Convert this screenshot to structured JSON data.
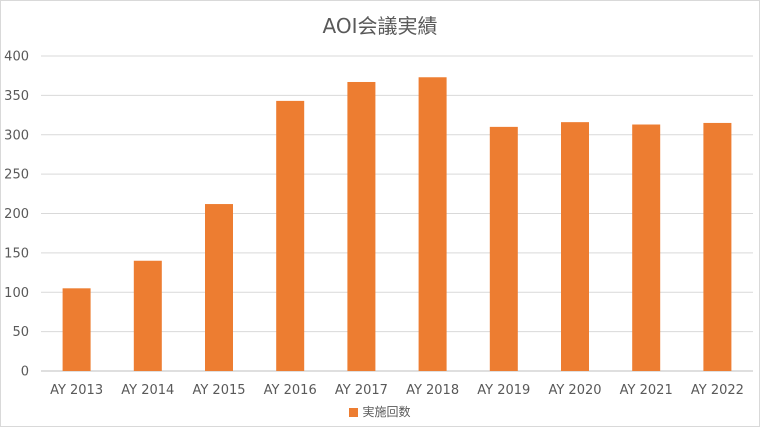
{
  "chart_data": {
    "type": "bar",
    "title": "AOI会議実績",
    "categories": [
      "AY 2013",
      "AY 2014",
      "AY 2015",
      "AY 2016",
      "AY 2017",
      "AY 2018",
      "AY 2019",
      "AY 2020",
      "AY 2021",
      "AY 2022"
    ],
    "series": [
      {
        "name": "実施回数",
        "values": [
          105,
          140,
          212,
          343,
          367,
          373,
          310,
          316,
          313,
          315
        ],
        "color": "#ED7D31"
      }
    ],
    "xlabel": "",
    "ylabel": "",
    "ylim": [
      0,
      400
    ],
    "yticks": [
      0,
      50,
      100,
      150,
      200,
      250,
      300,
      350,
      400
    ],
    "grid": true,
    "legend_position": "bottom"
  }
}
